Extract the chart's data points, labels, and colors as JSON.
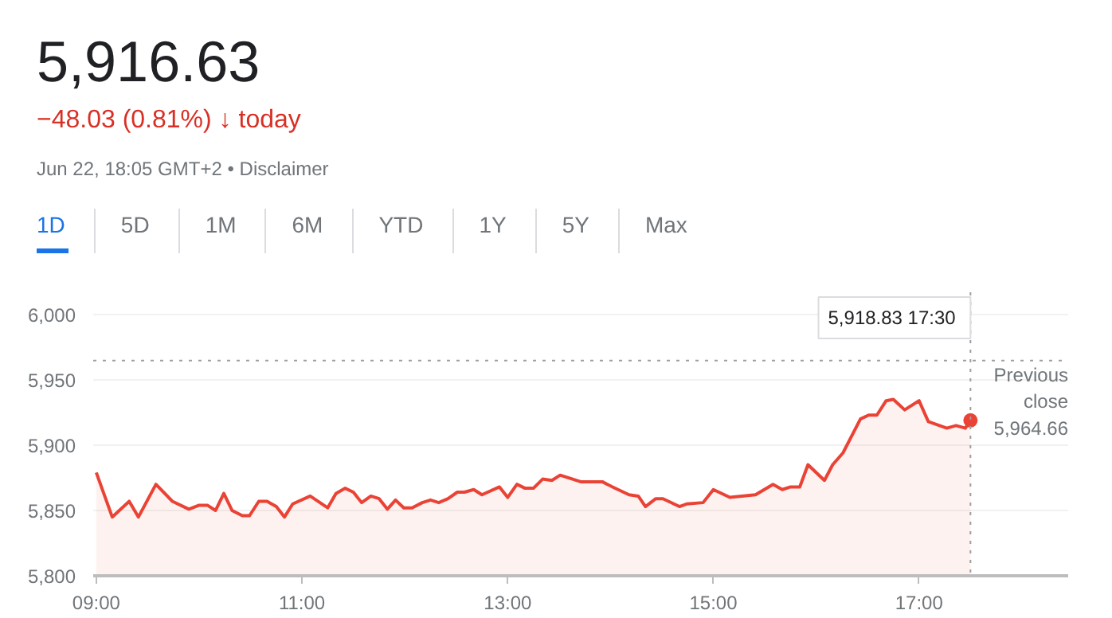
{
  "chart_data": {
    "type": "area",
    "title": "5,916.63",
    "subtitle": "−48.03 (0.81%) ↓ today",
    "annotations": [
      "Jun 22, 18:05 GMT+2 • Disclaimer",
      "1D",
      "5D",
      "1M",
      "6M",
      "YTD",
      "1Y",
      "5Y",
      "Max",
      "5,918.83  17:30"
    ],
    "x": [
      9.0,
      9.155,
      9.32,
      9.41,
      9.58,
      9.74,
      9.9,
      10.0,
      10.08,
      10.16,
      10.24,
      10.32,
      10.42,
      10.49,
      10.58,
      10.66,
      10.75,
      10.83,
      10.91,
      11.08,
      11.25,
      11.33,
      11.42,
      11.5,
      11.58,
      11.67,
      11.75,
      11.83,
      11.91,
      11.99,
      12.07,
      12.17,
      12.25,
      12.33,
      12.42,
      12.51,
      12.58,
      12.67,
      12.75,
      12.92,
      13.0,
      13.09,
      13.17,
      13.25,
      13.34,
      13.43,
      13.51,
      13.71,
      13.92,
      14.02,
      14.18,
      14.27,
      14.34,
      14.44,
      14.51,
      14.67,
      14.74,
      14.9,
      15.0,
      15.16,
      15.41,
      15.58,
      15.67,
      15.75,
      15.84,
      15.92,
      16.08,
      16.16,
      16.26,
      16.43,
      16.51,
      16.59,
      16.68,
      16.75,
      16.86,
      17.0,
      17.09,
      17.27,
      17.36,
      17.45,
      17.5
    ],
    "series": [
      {
        "color": "#ea4335",
        "values": [
          5879,
          5845,
          5857,
          5845,
          5870,
          5857,
          5851,
          5854,
          5854,
          5850,
          5863,
          5850,
          5846,
          5846,
          5857,
          5857,
          5853,
          5845,
          5855,
          5861,
          5852,
          5863,
          5867,
          5864,
          5856,
          5861,
          5859,
          5851,
          5858,
          5852,
          5852,
          5856,
          5858,
          5856,
          5859,
          5864,
          5864,
          5866,
          5862,
          5868,
          5860,
          5870,
          5867,
          5867,
          5874,
          5873,
          5877,
          5872,
          5872,
          5868,
          5862,
          5861,
          5853,
          5859,
          5859,
          5853,
          5855,
          5856,
          5866,
          5860,
          5862,
          5870,
          5866,
          5868,
          5868,
          5885,
          5873,
          5885,
          5894,
          5920,
          5923,
          5923,
          5934,
          5935,
          5927,
          5934,
          5918,
          5913,
          5915,
          5913,
          5919
        ]
      }
    ],
    "xlim": [
      8.97,
      18.45
    ],
    "ylim": [
      5800,
      6017
    ],
    "xticks": [
      {
        "value": 9,
        "label": "09:00"
      },
      {
        "value": 11,
        "label": "11:00"
      },
      {
        "value": 13,
        "label": "13:00"
      },
      {
        "value": 15,
        "label": "15:00"
      },
      {
        "value": 17,
        "label": "17:00"
      }
    ],
    "yticks": [
      {
        "value": 5800,
        "label": "5,800"
      },
      {
        "value": 5850,
        "label": "5,850"
      },
      {
        "value": 5900,
        "label": "5,900"
      },
      {
        "value": 5950,
        "label": "5,950"
      },
      {
        "value": 6000,
        "label": "6,000"
      }
    ],
    "grid": "y",
    "ref_lines": [
      {
        "axis": "y",
        "value": 5964.66,
        "label": "Previous close 5,964.66",
        "line_style": "dotted",
        "color": "#9e9e9e"
      },
      {
        "axis": "x",
        "value": 17.5,
        "label": null,
        "line_style": "dotted",
        "color": "#9e9e9e"
      }
    ]
  }
}
